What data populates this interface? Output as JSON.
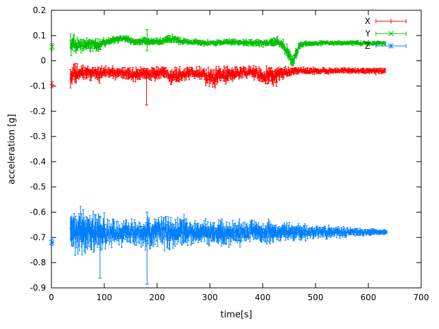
{
  "chart_data": {
    "type": "scatter",
    "style": "points-with-errorbars",
    "title": "",
    "xlabel": "time[s]",
    "ylabel": "acceleration [g]",
    "xlim": [
      0,
      700
    ],
    "ylim": [
      -0.9,
      0.2
    ],
    "xticks": [
      0,
      100,
      200,
      300,
      400,
      500,
      600,
      700
    ],
    "yticks": [
      -0.9,
      -0.8,
      -0.7,
      -0.6,
      -0.5,
      -0.4,
      -0.3,
      -0.2,
      -0.1,
      0,
      0.1,
      0.2
    ],
    "grid": false,
    "legend_position": "top-right-inside",
    "sample_step_s": 1,
    "series": [
      {
        "name": "X",
        "color": "#ff0000",
        "marker": "plus",
        "start_point": {
          "t": 1,
          "v": -0.095,
          "err": 0.012
        },
        "spikes": [
          {
            "t": 180,
            "lo": -0.175,
            "hi": -0.04
          }
        ],
        "keyframes": [
          [
            36,
            -0.065,
            0.065
          ],
          [
            45,
            -0.055,
            0.055
          ],
          [
            55,
            -0.05,
            0.04
          ],
          [
            70,
            -0.048,
            0.035
          ],
          [
            90,
            -0.05,
            0.045
          ],
          [
            100,
            -0.045,
            0.03
          ],
          [
            120,
            -0.05,
            0.03
          ],
          [
            140,
            -0.05,
            0.035
          ],
          [
            160,
            -0.055,
            0.04
          ],
          [
            175,
            -0.05,
            0.03
          ],
          [
            185,
            -0.05,
            0.035
          ],
          [
            200,
            -0.05,
            0.04
          ],
          [
            215,
            -0.045,
            0.03
          ],
          [
            228,
            -0.06,
            0.05
          ],
          [
            240,
            -0.055,
            0.045
          ],
          [
            255,
            -0.05,
            0.035
          ],
          [
            270,
            -0.045,
            0.03
          ],
          [
            285,
            -0.05,
            0.035
          ],
          [
            295,
            -0.065,
            0.05
          ],
          [
            310,
            -0.07,
            0.05
          ],
          [
            320,
            -0.055,
            0.04
          ],
          [
            335,
            -0.06,
            0.045
          ],
          [
            350,
            -0.05,
            0.035
          ],
          [
            365,
            -0.045,
            0.03
          ],
          [
            380,
            -0.045,
            0.03
          ],
          [
            395,
            -0.055,
            0.045
          ],
          [
            405,
            -0.065,
            0.055
          ],
          [
            415,
            -0.055,
            0.045
          ],
          [
            425,
            -0.06,
            0.05
          ],
          [
            435,
            -0.05,
            0.035
          ],
          [
            448,
            -0.045,
            0.025
          ],
          [
            460,
            -0.042,
            0.02
          ],
          [
            480,
            -0.04,
            0.018
          ],
          [
            520,
            -0.04,
            0.016
          ],
          [
            560,
            -0.04,
            0.015
          ],
          [
            600,
            -0.04,
            0.015
          ],
          [
            632,
            -0.04,
            0.015
          ]
        ]
      },
      {
        "name": "Y",
        "color": "#00c000",
        "marker": "cross",
        "start_point": {
          "t": 1,
          "v": 0.055,
          "err": 0.013
        },
        "spikes": [
          {
            "t": 181,
            "lo": 0.04,
            "hi": 0.123
          }
        ],
        "keyframes": [
          [
            36,
            0.06,
            0.05
          ],
          [
            45,
            0.065,
            0.045
          ],
          [
            55,
            0.06,
            0.04
          ],
          [
            70,
            0.065,
            0.035
          ],
          [
            85,
            0.06,
            0.03
          ],
          [
            100,
            0.07,
            0.025
          ],
          [
            115,
            0.08,
            0.02
          ],
          [
            130,
            0.09,
            0.018
          ],
          [
            145,
            0.085,
            0.018
          ],
          [
            160,
            0.075,
            0.018
          ],
          [
            175,
            0.078,
            0.02
          ],
          [
            190,
            0.075,
            0.018
          ],
          [
            205,
            0.075,
            0.018
          ],
          [
            220,
            0.085,
            0.022
          ],
          [
            232,
            0.088,
            0.02
          ],
          [
            245,
            0.078,
            0.018
          ],
          [
            260,
            0.075,
            0.016
          ],
          [
            280,
            0.072,
            0.016
          ],
          [
            300,
            0.07,
            0.016
          ],
          [
            320,
            0.072,
            0.016
          ],
          [
            340,
            0.075,
            0.016
          ],
          [
            360,
            0.072,
            0.016
          ],
          [
            380,
            0.07,
            0.018
          ],
          [
            400,
            0.07,
            0.02
          ],
          [
            415,
            0.072,
            0.022
          ],
          [
            428,
            0.078,
            0.028
          ],
          [
            440,
            0.06,
            0.03
          ],
          [
            450,
            0.02,
            0.035
          ],
          [
            457,
            -0.005,
            0.03
          ],
          [
            463,
            0.03,
            0.03
          ],
          [
            470,
            0.06,
            0.022
          ],
          [
            480,
            0.068,
            0.014
          ],
          [
            520,
            0.07,
            0.012
          ],
          [
            560,
            0.07,
            0.012
          ],
          [
            600,
            0.07,
            0.012
          ],
          [
            632,
            0.07,
            0.012
          ]
        ]
      },
      {
        "name": "Z",
        "color": "#0080ff",
        "marker": "star",
        "start_point": {
          "t": 1,
          "v": -0.72,
          "err": 0.012
        },
        "spikes": [
          {
            "t": 92,
            "lo": -0.862,
            "hi": -0.62
          },
          {
            "t": 181,
            "lo": -0.885,
            "hi": -0.6
          }
        ],
        "keyframes": [
          [
            36,
            -0.68,
            0.1
          ],
          [
            45,
            -0.685,
            0.11
          ],
          [
            55,
            -0.68,
            0.115
          ],
          [
            65,
            -0.685,
            0.11
          ],
          [
            75,
            -0.68,
            0.1
          ],
          [
            85,
            -0.69,
            0.11
          ],
          [
            95,
            -0.685,
            0.1
          ],
          [
            105,
            -0.68,
            0.08
          ],
          [
            120,
            -0.678,
            0.07
          ],
          [
            135,
            -0.68,
            0.065
          ],
          [
            150,
            -0.68,
            0.06
          ],
          [
            165,
            -0.682,
            0.065
          ],
          [
            178,
            -0.685,
            0.08
          ],
          [
            190,
            -0.68,
            0.085
          ],
          [
            205,
            -0.678,
            0.08
          ],
          [
            220,
            -0.682,
            0.09
          ],
          [
            235,
            -0.68,
            0.085
          ],
          [
            250,
            -0.68,
            0.08
          ],
          [
            265,
            -0.678,
            0.07
          ],
          [
            280,
            -0.68,
            0.065
          ],
          [
            295,
            -0.68,
            0.06
          ],
          [
            310,
            -0.685,
            0.065
          ],
          [
            325,
            -0.688,
            0.07
          ],
          [
            340,
            -0.682,
            0.06
          ],
          [
            355,
            -0.685,
            0.065
          ],
          [
            370,
            -0.68,
            0.055
          ],
          [
            385,
            -0.678,
            0.055
          ],
          [
            400,
            -0.682,
            0.06
          ],
          [
            412,
            -0.685,
            0.062
          ],
          [
            425,
            -0.68,
            0.055
          ],
          [
            440,
            -0.678,
            0.048
          ],
          [
            455,
            -0.68,
            0.045
          ],
          [
            470,
            -0.68,
            0.042
          ],
          [
            490,
            -0.68,
            0.038
          ],
          [
            510,
            -0.679,
            0.034
          ],
          [
            530,
            -0.679,
            0.03
          ],
          [
            550,
            -0.679,
            0.027
          ],
          [
            570,
            -0.68,
            0.024
          ],
          [
            590,
            -0.68,
            0.021
          ],
          [
            610,
            -0.68,
            0.018
          ],
          [
            635,
            -0.68,
            0.016
          ]
        ]
      }
    ]
  },
  "colors": {
    "axis": "#000000",
    "background": "#ffffff",
    "series_x": "#ff0000",
    "series_y": "#00c000",
    "series_z": "#0080ff"
  }
}
